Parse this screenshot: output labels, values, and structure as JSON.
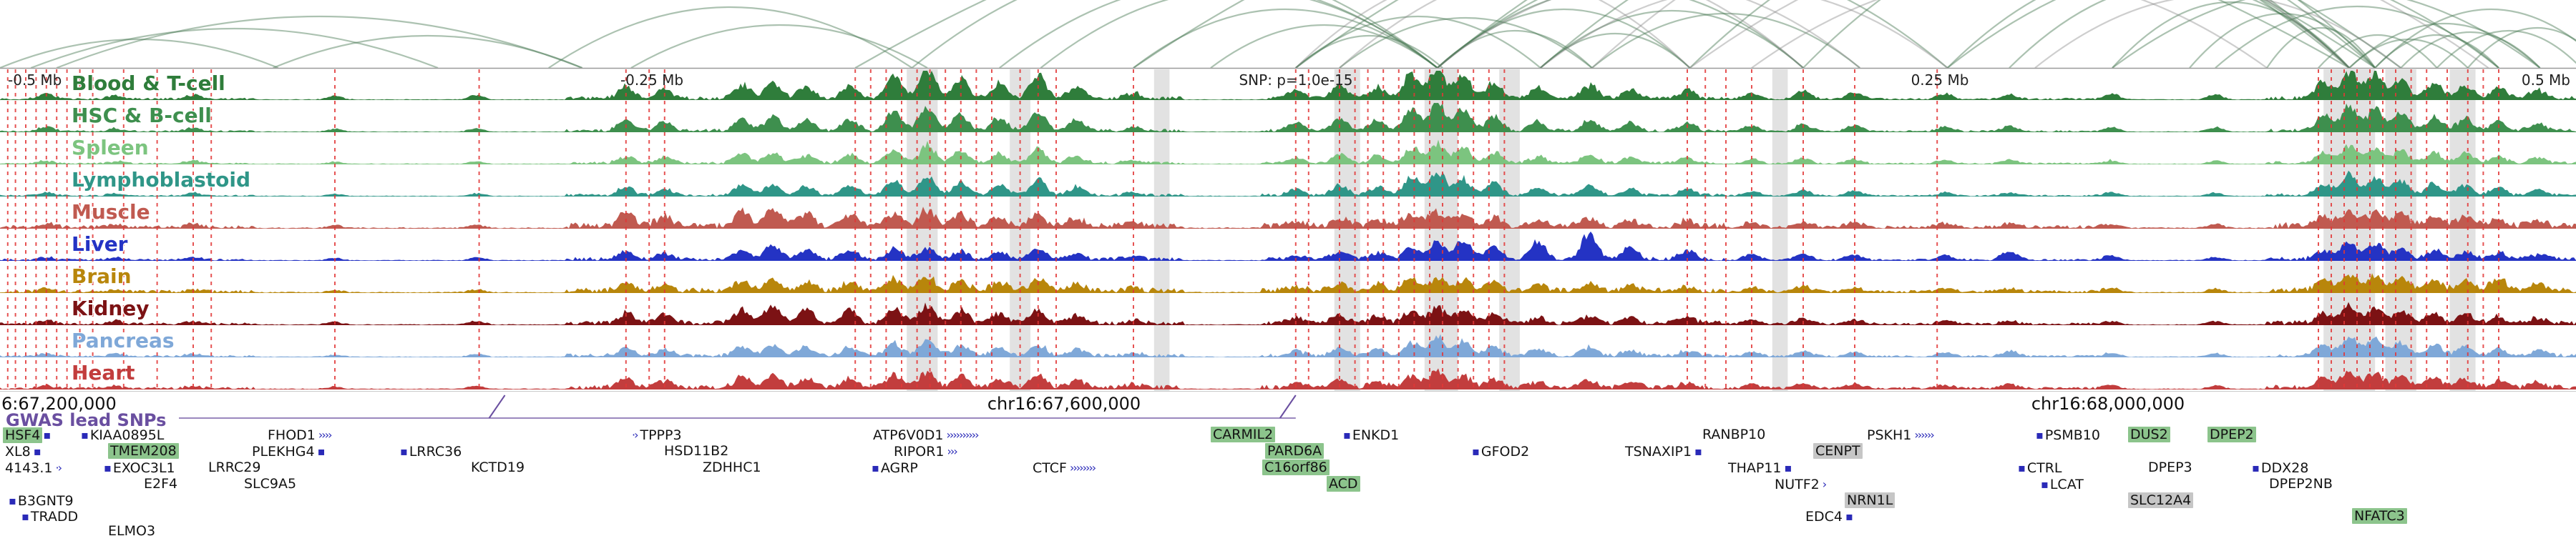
{
  "gwas_label": "GWAS lead SNPs",
  "scale_labels": [
    {
      "text": "-0.5 Mb",
      "x": 0.003
    },
    {
      "text": "-0.25 Mb",
      "x": 0.253
    },
    {
      "text": "SNP: p=1.0e-15",
      "x": 0.503
    },
    {
      "text": "0.25 Mb",
      "x": 0.753
    },
    {
      "text": "0.5 Mb",
      "x": 0.998
    }
  ],
  "coordinates": [
    {
      "text": "6:67,200,000",
      "x": 0.001
    },
    {
      "text": "chr16:67,600,000",
      "x": 0.413
    },
    {
      "text": "chr16:68,000,000",
      "x": 0.818
    }
  ],
  "chart_data": {
    "type": "area",
    "title": "Tissue signal tracks with chromatin interaction arcs, GWAS SNP positions (red dashed lines) and gene annotations, chr16 locus, window SNP ± 0.5 Mb",
    "x_range_mb": [
      -0.5,
      0.5
    ],
    "snp_label": "SNP: p=1.0e-15",
    "lead_snp_markers": [
      0.196,
      0.503
    ],
    "peak_positions": [
      0.018,
      0.045,
      0.075,
      0.13,
      0.185,
      0.243,
      0.258,
      0.288,
      0.3,
      0.313,
      0.33,
      0.347,
      0.36,
      0.373,
      0.388,
      0.403,
      0.418,
      0.44,
      0.503,
      0.52,
      0.535,
      0.548,
      0.558,
      0.568,
      0.58,
      0.597,
      0.617,
      0.633,
      0.655,
      0.68,
      0.7,
      0.72,
      0.755,
      0.78,
      0.82,
      0.86,
      0.902,
      0.912,
      0.922,
      0.932,
      0.945,
      0.957,
      0.97,
      0.985
    ],
    "series": [
      {
        "name": "Blood & T-cell",
        "color": "#2f7d3b",
        "noise": 0.5,
        "values": [
          0.18,
          0.12,
          0.15,
          0.12,
          0.15,
          0.4,
          0.3,
          0.45,
          0.5,
          0.38,
          0.45,
          0.8,
          1.0,
          0.65,
          0.5,
          0.75,
          0.4,
          0.18,
          0.28,
          0.45,
          0.4,
          0.85,
          1.0,
          0.75,
          0.55,
          0.35,
          0.45,
          0.3,
          0.28,
          0.22,
          0.28,
          0.22,
          0.18,
          0.18,
          0.18,
          0.18,
          0.55,
          0.9,
          0.85,
          0.65,
          0.5,
          0.45,
          0.35,
          0.28
        ]
      },
      {
        "name": "HSC & B-cell",
        "color": "#3e8f4e",
        "noise": 0.45,
        "values": [
          0.15,
          0.1,
          0.12,
          0.1,
          0.12,
          0.35,
          0.28,
          0.4,
          0.45,
          0.35,
          0.4,
          0.7,
          0.85,
          0.55,
          0.45,
          0.65,
          0.35,
          0.15,
          0.25,
          0.4,
          0.35,
          0.75,
          0.95,
          0.7,
          0.5,
          0.3,
          0.4,
          0.28,
          0.25,
          0.2,
          0.25,
          0.2,
          0.15,
          0.15,
          0.15,
          0.15,
          0.5,
          0.8,
          0.75,
          0.6,
          0.45,
          0.4,
          0.3,
          0.25
        ]
      },
      {
        "name": "Spleen",
        "color": "#7cc47f",
        "noise": 0.4,
        "values": [
          0.1,
          0.08,
          0.1,
          0.08,
          0.1,
          0.25,
          0.2,
          0.3,
          0.35,
          0.25,
          0.3,
          0.45,
          0.6,
          0.4,
          0.3,
          0.45,
          0.25,
          0.12,
          0.18,
          0.3,
          0.25,
          0.5,
          0.7,
          0.5,
          0.35,
          0.22,
          0.28,
          0.2,
          0.18,
          0.15,
          0.18,
          0.15,
          0.12,
          0.12,
          0.12,
          0.12,
          0.35,
          0.6,
          0.55,
          0.45,
          0.35,
          0.3,
          0.22,
          0.18
        ]
      },
      {
        "name": "Lymphoblastoid",
        "color": "#2f9688",
        "noise": 0.4,
        "values": [
          0.12,
          0.08,
          0.1,
          0.08,
          0.1,
          0.28,
          0.22,
          0.32,
          0.38,
          0.28,
          0.32,
          0.5,
          0.65,
          0.45,
          0.35,
          0.5,
          0.28,
          0.12,
          0.2,
          0.32,
          0.28,
          0.6,
          0.8,
          0.55,
          0.4,
          0.25,
          0.32,
          0.22,
          0.2,
          0.16,
          0.2,
          0.16,
          0.12,
          0.12,
          0.12,
          0.12,
          0.4,
          0.68,
          0.62,
          0.5,
          0.38,
          0.32,
          0.25,
          0.2
        ]
      },
      {
        "name": "Muscle",
        "color": "#c05a50",
        "noise": 0.8,
        "values": [
          0.12,
          0.1,
          0.1,
          0.1,
          0.12,
          0.45,
          0.35,
          0.5,
          0.55,
          0.4,
          0.35,
          0.45,
          0.55,
          0.4,
          0.3,
          0.4,
          0.25,
          0.12,
          0.18,
          0.28,
          0.25,
          0.4,
          0.5,
          0.4,
          0.3,
          0.22,
          0.25,
          0.18,
          0.18,
          0.15,
          0.18,
          0.15,
          0.12,
          0.12,
          0.12,
          0.12,
          0.3,
          0.5,
          0.45,
          0.38,
          0.3,
          0.28,
          0.2,
          0.16
        ]
      },
      {
        "name": "Liver",
        "color": "#2433c4",
        "noise": 0.5,
        "values": [
          0.1,
          0.08,
          0.08,
          0.08,
          0.1,
          0.25,
          0.2,
          0.3,
          0.45,
          0.3,
          0.28,
          0.35,
          0.4,
          0.3,
          0.25,
          0.32,
          0.2,
          0.1,
          0.15,
          0.25,
          0.22,
          0.4,
          0.55,
          0.65,
          0.45,
          0.6,
          0.85,
          0.4,
          0.3,
          0.2,
          0.22,
          0.18,
          0.15,
          0.3,
          0.15,
          0.12,
          0.3,
          0.55,
          0.5,
          0.4,
          0.32,
          0.28,
          0.2,
          0.16
        ]
      },
      {
        "name": "Brain",
        "color": "#b8860b",
        "noise": 0.7,
        "values": [
          0.1,
          0.08,
          0.08,
          0.08,
          0.1,
          0.28,
          0.22,
          0.32,
          0.38,
          0.28,
          0.3,
          0.4,
          0.48,
          0.35,
          0.28,
          0.38,
          0.22,
          0.1,
          0.15,
          0.25,
          0.22,
          0.38,
          0.48,
          0.38,
          0.28,
          0.2,
          0.25,
          0.18,
          0.16,
          0.14,
          0.18,
          0.14,
          0.12,
          0.12,
          0.14,
          0.12,
          0.32,
          0.55,
          0.5,
          0.42,
          0.34,
          0.3,
          0.4,
          0.2
        ]
      },
      {
        "name": "Kidney",
        "color": "#7c1214",
        "noise": 0.6,
        "values": [
          0.12,
          0.1,
          0.1,
          0.1,
          0.12,
          0.35,
          0.28,
          0.45,
          0.6,
          0.45,
          0.4,
          0.55,
          0.6,
          0.42,
          0.32,
          0.45,
          0.26,
          0.12,
          0.18,
          0.28,
          0.25,
          0.42,
          0.52,
          0.4,
          0.3,
          0.22,
          0.26,
          0.18,
          0.18,
          0.15,
          0.18,
          0.15,
          0.12,
          0.12,
          0.12,
          0.12,
          0.32,
          0.55,
          0.5,
          0.4,
          0.32,
          0.28,
          0.22,
          0.18
        ]
      },
      {
        "name": "Pancreas",
        "color": "#7fa8d8",
        "noise": 0.5,
        "values": [
          0.1,
          0.08,
          0.08,
          0.08,
          0.1,
          0.25,
          0.2,
          0.3,
          0.38,
          0.28,
          0.28,
          0.4,
          0.5,
          0.35,
          0.28,
          0.38,
          0.22,
          0.1,
          0.15,
          0.25,
          0.22,
          0.45,
          0.62,
          0.45,
          0.32,
          0.22,
          0.28,
          0.2,
          0.18,
          0.15,
          0.18,
          0.15,
          0.12,
          0.2,
          0.12,
          0.12,
          0.35,
          0.62,
          0.58,
          0.45,
          0.35,
          0.3,
          0.22,
          0.18
        ]
      },
      {
        "name": "Heart",
        "color": "#c23d3d",
        "noise": 0.6,
        "values": [
          0.1,
          0.08,
          0.08,
          0.08,
          0.1,
          0.3,
          0.24,
          0.35,
          0.42,
          0.3,
          0.32,
          0.42,
          0.52,
          0.38,
          0.28,
          0.4,
          0.24,
          0.1,
          0.16,
          0.26,
          0.22,
          0.4,
          0.52,
          0.4,
          0.3,
          0.2,
          0.26,
          0.18,
          0.16,
          0.14,
          0.16,
          0.14,
          0.12,
          0.12,
          0.12,
          0.12,
          0.3,
          0.52,
          0.48,
          0.4,
          0.32,
          0.28,
          0.22,
          0.16
        ]
      }
    ],
    "snp_lines": [
      0.003,
      0.006,
      0.01,
      0.014,
      0.018,
      0.022,
      0.026,
      0.031,
      0.036,
      0.048,
      0.061,
      0.075,
      0.082,
      0.13,
      0.186,
      0.243,
      0.252,
      0.258,
      0.332,
      0.338,
      0.344,
      0.35,
      0.356,
      0.361,
      0.367,
      0.373,
      0.379,
      0.385,
      0.396,
      0.403,
      0.41,
      0.44,
      0.503,
      0.508,
      0.52,
      0.526,
      0.531,
      0.537,
      0.543,
      0.549,
      0.555,
      0.56,
      0.566,
      0.572,
      0.578,
      0.584,
      0.655,
      0.662,
      0.67,
      0.68,
      0.7,
      0.72,
      0.752,
      0.9,
      0.905,
      0.91,
      0.915,
      0.92,
      0.925,
      0.93,
      0.936,
      0.942,
      0.95,
      0.958,
      0.964,
      0.97
    ],
    "highlight_bands": [
      [
        0.352,
        0.012
      ],
      [
        0.392,
        0.008
      ],
      [
        0.448,
        0.006
      ],
      [
        0.518,
        0.01
      ],
      [
        0.553,
        0.013
      ],
      [
        0.582,
        0.008
      ],
      [
        0.688,
        0.006
      ],
      [
        0.902,
        0.02
      ],
      [
        0.926,
        0.012
      ],
      [
        0.951,
        0.01
      ]
    ],
    "arcs": [
      [
        0.0,
        0.108,
        40
      ],
      [
        0.012,
        0.17,
        55
      ],
      [
        0.022,
        0.226,
        72
      ],
      [
        0.106,
        0.226,
        45
      ],
      [
        0.213,
        0.354,
        85
      ],
      [
        0.245,
        0.36,
        60
      ],
      [
        0.354,
        0.558,
        150
      ],
      [
        0.388,
        0.558,
        120
      ],
      [
        0.404,
        0.558,
        110
      ],
      [
        0.44,
        0.558,
        82
      ],
      [
        0.47,
        0.558,
        60
      ],
      [
        0.503,
        0.56,
        45
      ],
      [
        0.503,
        0.598,
        72
      ],
      [
        0.52,
        0.618,
        70
      ],
      [
        0.558,
        0.618,
        52
      ],
      [
        0.558,
        0.656,
        82
      ],
      [
        0.558,
        0.7,
        112
      ],
      [
        0.558,
        0.756,
        152
      ],
      [
        0.598,
        0.656,
        48
      ],
      [
        0.598,
        0.7,
        80
      ],
      [
        0.618,
        0.722,
        76
      ],
      [
        0.558,
        0.912,
        270
      ],
      [
        0.598,
        0.922,
        255
      ],
      [
        0.656,
        0.912,
        225
      ],
      [
        0.7,
        0.922,
        205
      ],
      [
        0.756,
        0.912,
        140
      ],
      [
        0.78,
        0.912,
        118
      ],
      [
        0.82,
        0.912,
        92
      ],
      [
        0.85,
        0.922,
        76
      ],
      [
        0.88,
        0.922,
        56
      ],
      [
        0.9,
        0.946,
        46
      ],
      [
        0.912,
        0.958,
        40
      ],
      [
        0.912,
        0.986,
        62
      ],
      [
        0.922,
        0.97,
        46
      ],
      [
        0.932,
        0.986,
        50
      ],
      [
        0.946,
        1.002,
        52
      ],
      [
        0.958,
        1.012,
        56
      ],
      [
        0.922,
        1.012,
        82
      ],
      [
        0.86,
        0.97,
        86
      ],
      [
        0.82,
        0.986,
        112
      ],
      [
        0.756,
        0.97,
        152
      ],
      [
        0.332,
        0.912,
        300
      ],
      [
        0.44,
        0.922,
        295
      ],
      [
        0.503,
        0.932,
        285
      ],
      [
        0.503,
        0.656,
        135,
        "y"
      ],
      [
        0.52,
        0.7,
        145,
        "y"
      ],
      [
        0.558,
        0.722,
        122,
        "y"
      ],
      [
        0.598,
        0.756,
        112,
        "y"
      ],
      [
        0.618,
        0.912,
        245,
        "y"
      ],
      [
        0.656,
        0.966,
        205,
        "y"
      ],
      [
        0.79,
        0.932,
        102,
        "y"
      ],
      [
        0.68,
        0.88,
        130,
        "y"
      ]
    ],
    "genes": [
      {
        "name": "HSF4",
        "row": 0,
        "x": 0.001,
        "style": "green",
        "post": "▪"
      },
      {
        "name": "KIAA0895L",
        "row": 0,
        "x": 0.031,
        "pre": "▪"
      },
      {
        "name": "FHOD1",
        "row": 0,
        "x": 0.103,
        "post": "››››"
      },
      {
        "name": "TPPP3",
        "row": 0,
        "x": 0.245,
        "pre": "·›"
      },
      {
        "name": "ATP6V0D1",
        "row": 0,
        "x": 0.338,
        "post": "››››››››››"
      },
      {
        "name": "CARMIL2",
        "row": 0,
        "x": 0.47,
        "style": "green"
      },
      {
        "name": "ENKD1",
        "row": 0,
        "x": 0.521,
        "pre": "▪"
      },
      {
        "name": "RANBP10",
        "row": 0,
        "x": 0.66
      },
      {
        "name": "PSKH1",
        "row": 0,
        "x": 0.724,
        "post": "››››››"
      },
      {
        "name": "PSMB10",
        "row": 0,
        "x": 0.79,
        "pre": "▪"
      },
      {
        "name": "DUS2",
        "row": 0,
        "x": 0.826,
        "style": "green"
      },
      {
        "name": "DPEP2",
        "row": 0,
        "x": 0.857,
        "style": "green"
      },
      {
        "name": "XL8",
        "row": 1,
        "x": 0.001,
        "post": "▪"
      },
      {
        "name": "TMEM208",
        "row": 1,
        "x": 0.042,
        "style": "green"
      },
      {
        "name": "PLEKHG4",
        "row": 1,
        "x": 0.097,
        "post": "▪"
      },
      {
        "name": "LRRC36",
        "row": 1,
        "x": 0.155,
        "pre": "▪"
      },
      {
        "name": "HSD11B2",
        "row": 1,
        "x": 0.257
      },
      {
        "name": "RIPOR1",
        "row": 1,
        "x": 0.346,
        "post": "›››"
      },
      {
        "name": "PARD6A",
        "row": 1,
        "x": 0.491,
        "style": "green"
      },
      {
        "name": "GFOD2",
        "row": 1,
        "x": 0.571,
        "pre": "▪"
      },
      {
        "name": "TSNAXIP1",
        "row": 1,
        "x": 0.63,
        "post": "▪"
      },
      {
        "name": "CENPT",
        "row": 1,
        "x": 0.704,
        "style": "gray"
      },
      {
        "name": "4143.1",
        "row": 2,
        "x": 0.001,
        "post": "·›"
      },
      {
        "name": "EXOC3L1",
        "row": 2,
        "x": 0.04,
        "pre": "▪"
      },
      {
        "name": "LRRC29",
        "row": 2,
        "x": 0.08
      },
      {
        "name": "KCTD19",
        "row": 2,
        "x": 0.182
      },
      {
        "name": "ZDHHC1",
        "row": 2,
        "x": 0.272
      },
      {
        "name": "AGRP",
        "row": 2,
        "x": 0.338,
        "pre": "▪"
      },
      {
        "name": "CTCF",
        "row": 2,
        "x": 0.4,
        "post": "››››››››"
      },
      {
        "name": "C16orf86",
        "row": 2,
        "x": 0.49,
        "style": "green"
      },
      {
        "name": "THAP11",
        "row": 2,
        "x": 0.67,
        "post": "▪"
      },
      {
        "name": "CTRL",
        "row": 2,
        "x": 0.783,
        "pre": "▪"
      },
      {
        "name": "DPEP3",
        "row": 2,
        "x": 0.833
      },
      {
        "name": "DDX28",
        "row": 2,
        "x": 0.874,
        "pre": "▪"
      },
      {
        "name": "E2F4",
        "row": 3,
        "x": 0.055
      },
      {
        "name": "SLC9A5",
        "row": 3,
        "x": 0.094
      },
      {
        "name": "ACD",
        "row": 3,
        "x": 0.515,
        "style": "green"
      },
      {
        "name": "NUTF2",
        "row": 3,
        "x": 0.688,
        "post": "›"
      },
      {
        "name": "LCAT",
        "row": 3,
        "x": 0.792,
        "pre": "▪"
      },
      {
        "name": "DPEP2NB",
        "row": 3,
        "x": 0.88
      },
      {
        "name": "B3GNT9",
        "row": 4,
        "x": 0.003,
        "pre": "▪"
      },
      {
        "name": "NRN1L",
        "row": 4,
        "x": 0.716,
        "style": "gray"
      },
      {
        "name": "SLC12A4",
        "row": 4,
        "x": 0.826,
        "style": "gray"
      },
      {
        "name": "TRADD",
        "row": 5,
        "x": 0.008,
        "pre": "▪"
      },
      {
        "name": "EDC4",
        "row": 5,
        "x": 0.7,
        "post": "▪"
      },
      {
        "name": "NFATC3",
        "row": 5,
        "x": 0.913,
        "style": "green"
      },
      {
        "name": "ELMO3",
        "row": 6,
        "x": 0.041
      }
    ]
  }
}
